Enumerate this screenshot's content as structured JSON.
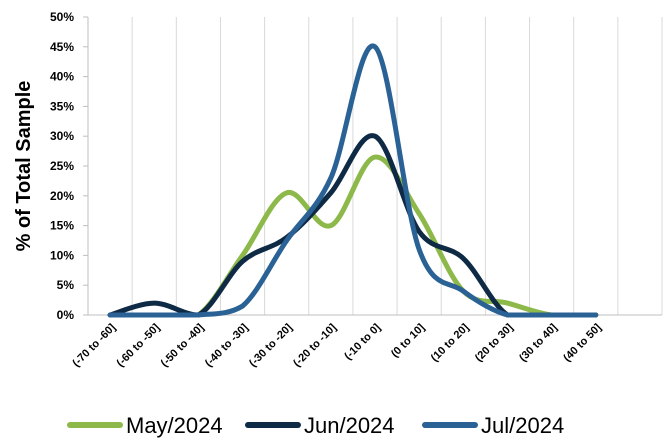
{
  "chart_data": {
    "type": "line",
    "title": "",
    "xlabel": "",
    "ylabel": "% of Total Sample",
    "ylim": [
      0,
      50
    ],
    "yticks": [
      "0%",
      "5%",
      "10%",
      "15%",
      "20%",
      "25%",
      "30%",
      "35%",
      "40%",
      "45%",
      "50%"
    ],
    "grid": "vertical",
    "legend_position": "bottom",
    "categories": [
      "(-70 to -60]",
      "(-60 to -50]",
      "(-50 to -40]",
      "(-40 to -30]",
      "(-30 to -20]",
      "(-20 to -10]",
      "(-10 to 0]",
      "(0 to 10]",
      "(10 to 20]",
      "(20 to 30]",
      "(30 to 40]",
      "(40 to 50]"
    ],
    "series": [
      {
        "name": "May/2024",
        "color": "#8db84a",
        "values": [
          0,
          0,
          0,
          10,
          20.5,
          15,
          26.5,
          17,
          4,
          2,
          0,
          0
        ]
      },
      {
        "name": "Jun/2024",
        "color": "#0f2a44",
        "values": [
          0,
          2,
          0,
          9,
          13,
          20.5,
          30,
          14,
          9.5,
          0,
          0,
          0
        ]
      },
      {
        "name": "Jul/2024",
        "color": "#2a6296",
        "values": [
          0,
          0,
          0,
          1.5,
          12.5,
          23,
          45,
          11,
          4,
          0,
          0,
          0
        ]
      }
    ]
  }
}
